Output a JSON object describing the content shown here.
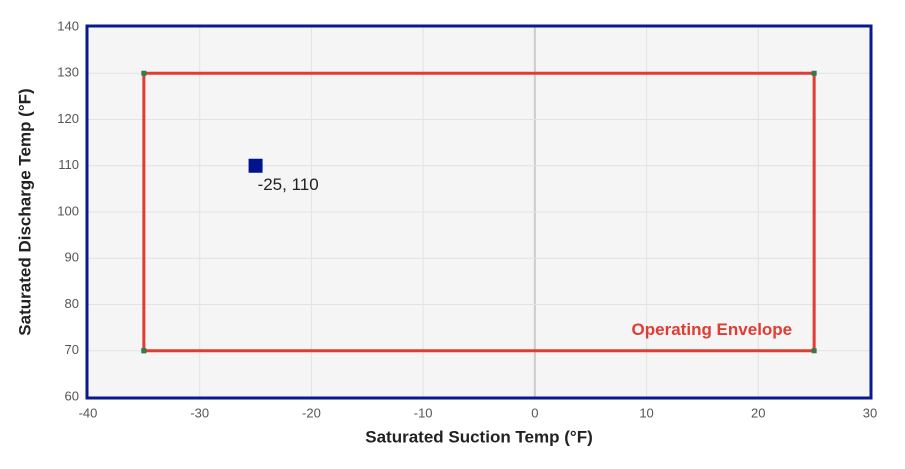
{
  "chart_data": {
    "type": "scatter",
    "x_label": "Saturated Suction Temp (°F)",
    "y_label": "Saturated Discharge Temp (°F)",
    "xlim": [
      -40,
      30
    ],
    "xticks": [
      -40,
      -30,
      -20,
      -10,
      0,
      10,
      20,
      30
    ],
    "ylim": [
      60,
      140
    ],
    "yticks": [
      60,
      70,
      80,
      90,
      100,
      110,
      120,
      130,
      140
    ],
    "grid": true,
    "series": [
      {
        "name": "Operating Envelope",
        "color": "#e03c31",
        "x": [
          -35,
          25,
          25,
          -35,
          -35
        ],
        "values": [
          70,
          70,
          130,
          130,
          70
        ]
      },
      {
        "color": "#00148c",
        "x": [
          -25
        ],
        "values": [
          110
        ],
        "value_labels": [
          "-25, 110"
        ]
      }
    ]
  }
}
